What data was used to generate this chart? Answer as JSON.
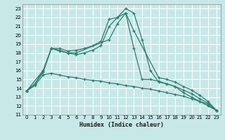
{
  "xlabel": "Humidex (Indice chaleur)",
  "bg_color": "#c8e8e8",
  "grid_color": "#ffffff",
  "line_color": "#2e7d6e",
  "xlim": [
    -0.5,
    23.5
  ],
  "ylim": [
    11,
    23.5
  ],
  "yticks": [
    11,
    12,
    13,
    14,
    15,
    16,
    17,
    18,
    19,
    20,
    21,
    22,
    23
  ],
  "xticks": [
    0,
    1,
    2,
    3,
    4,
    5,
    6,
    7,
    8,
    9,
    10,
    11,
    12,
    13,
    14,
    15,
    16,
    17,
    18,
    19,
    20,
    21,
    22,
    23
  ],
  "line1_x": [
    0,
    1,
    2,
    3,
    4,
    5,
    6,
    7,
    8,
    9,
    10,
    11,
    12,
    13,
    14,
    15,
    16,
    17,
    18,
    19,
    20,
    21,
    22,
    23
  ],
  "line1_y": [
    13.7,
    14.5,
    16.0,
    18.5,
    18.5,
    18.2,
    18.3,
    18.5,
    18.8,
    19.3,
    21.8,
    22.0,
    23.0,
    22.5,
    19.5,
    16.0,
    14.7,
    14.5,
    14.2,
    13.5,
    13.0,
    12.5,
    12.0,
    11.5
  ],
  "line2_x": [
    0,
    2,
    3,
    4,
    5,
    6,
    10,
    11,
    12,
    13,
    16,
    17,
    18,
    19,
    20,
    21,
    22,
    23
  ],
  "line2_y": [
    13.7,
    16.0,
    18.5,
    18.3,
    18.0,
    18.0,
    19.5,
    21.3,
    22.5,
    20.5,
    15.2,
    15.0,
    14.7,
    14.2,
    13.8,
    13.2,
    12.5,
    11.5
  ],
  "line3_x": [
    0,
    1,
    2,
    3,
    4,
    5,
    6,
    7,
    8,
    9,
    10,
    11,
    12,
    13,
    14,
    15,
    16,
    17,
    18,
    19,
    20,
    21,
    22,
    23
  ],
  "line3_y": [
    13.7,
    14.5,
    15.8,
    18.5,
    18.2,
    18.0,
    17.8,
    18.0,
    18.3,
    18.8,
    21.0,
    22.0,
    22.5,
    18.5,
    15.0,
    15.0,
    14.8,
    14.5,
    14.2,
    13.8,
    13.4,
    12.8,
    12.3,
    11.5
  ],
  "line4_x": [
    0,
    1,
    2,
    3,
    4,
    5,
    6,
    7,
    8,
    9,
    10,
    11,
    12,
    13,
    14,
    15,
    16,
    17,
    18,
    19,
    20,
    21,
    22,
    23
  ],
  "line4_y": [
    13.7,
    14.3,
    15.5,
    15.7,
    15.5,
    15.3,
    15.2,
    15.0,
    14.9,
    14.8,
    14.6,
    14.5,
    14.3,
    14.2,
    14.0,
    13.9,
    13.7,
    13.5,
    13.3,
    13.1,
    12.8,
    12.5,
    12.2,
    11.5
  ]
}
